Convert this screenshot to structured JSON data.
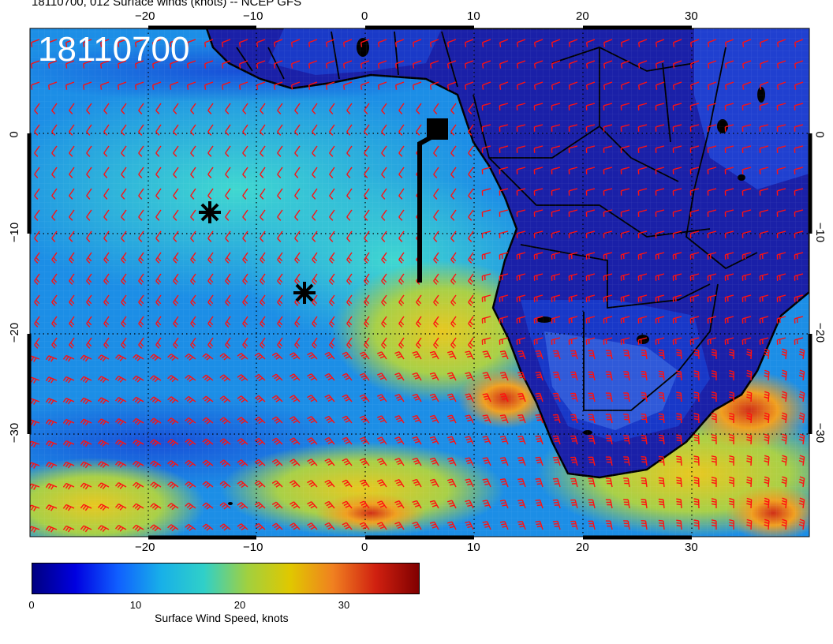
{
  "header": {
    "title": "18110700, 012 Surface winds (knots) -- NCEP GFS"
  },
  "map": {
    "stamp": "18110700",
    "lon_ticks": [
      "−20",
      "−10",
      "0",
      "10",
      "20",
      "30"
    ],
    "lat_ticks": [
      "0",
      "−10",
      "−20",
      "−30"
    ],
    "lat_ticks_right": [
      "0",
      "−10",
      "−20",
      "−30"
    ],
    "barb_color": "#ff1010",
    "marker_color": "#000000",
    "land_shade": "#14148c",
    "ocean_low_wind": "#1a78e0",
    "ocean_high_wind": "#e0b020"
  },
  "colorbar": {
    "title": "Surface Wind Speed, knots",
    "ticks": [
      "0",
      "10",
      "20",
      "30"
    ],
    "range": [
      0,
      37
    ],
    "colormap": [
      "#000080",
      "#0000e0",
      "#1060ff",
      "#18b0e8",
      "#30d0c8",
      "#a0d040",
      "#e0c800",
      "#f08020",
      "#d02010",
      "#800000"
    ]
  }
}
